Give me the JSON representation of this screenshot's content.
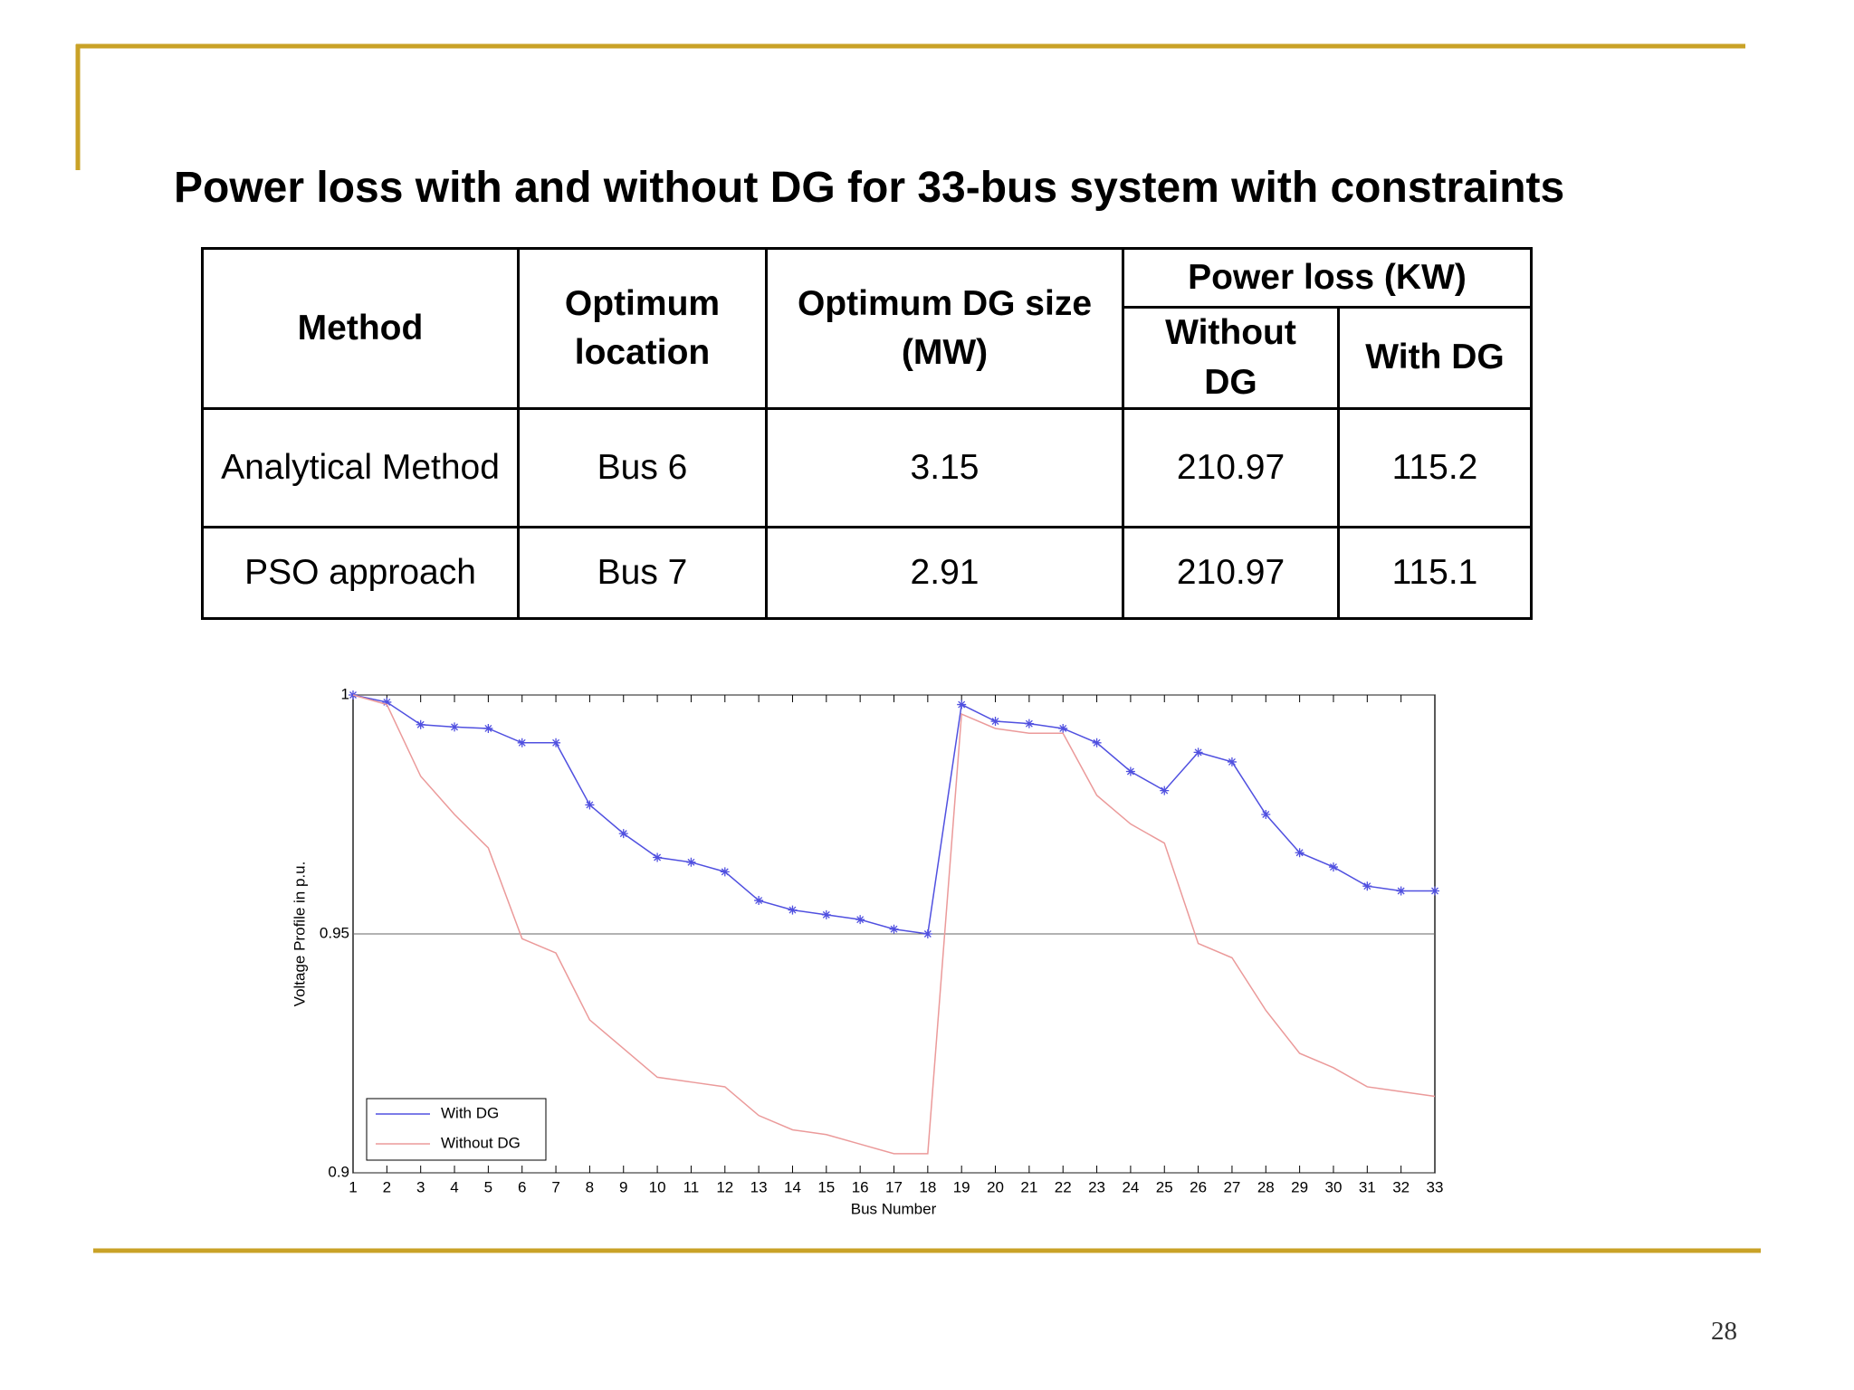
{
  "title": "Power loss with and without DG for 33-bus system with constraints",
  "table": {
    "columns": [
      "Method",
      "Optimum location",
      "Optimum DG size (MW)"
    ],
    "group": "Power loss (KW)",
    "subcolumns": [
      "Without DG",
      "With DG"
    ],
    "rows": [
      [
        "Analytical Method",
        "Bus 6",
        "3.15",
        "210.97",
        "115.2"
      ],
      [
        "PSO approach",
        "Bus 7",
        "2.91",
        "210.97",
        "115.1"
      ]
    ]
  },
  "chart_data": {
    "type": "line",
    "x_label": "Bus Number",
    "y_label": "Voltage Profile in p.u.",
    "x": [
      1,
      2,
      3,
      4,
      5,
      6,
      7,
      8,
      9,
      10,
      11,
      12,
      13,
      14,
      15,
      16,
      17,
      18,
      19,
      20,
      21,
      22,
      23,
      24,
      25,
      26,
      27,
      28,
      29,
      30,
      31,
      32,
      33
    ],
    "series": [
      {
        "name": "With DG",
        "color": "#5050e0",
        "marker": "star",
        "values": [
          1.0,
          0.9985,
          0.9938,
          0.9933,
          0.993,
          0.99,
          0.99,
          0.977,
          0.971,
          0.966,
          0.965,
          0.963,
          0.957,
          0.955,
          0.954,
          0.953,
          0.951,
          0.95,
          0.998,
          0.9945,
          0.994,
          0.993,
          0.99,
          0.984,
          0.98,
          0.988,
          0.986,
          0.975,
          0.967,
          0.964,
          0.96,
          0.959,
          0.959
        ]
      },
      {
        "name": "Without DG",
        "color": "#eb9a9a",
        "values": [
          1.0,
          0.998,
          0.983,
          0.975,
          0.968,
          0.949,
          0.946,
          0.932,
          0.926,
          0.92,
          0.919,
          0.918,
          0.912,
          0.909,
          0.908,
          0.906,
          0.904,
          0.904,
          0.996,
          0.993,
          0.992,
          0.992,
          0.979,
          0.973,
          0.969,
          0.948,
          0.945,
          0.934,
          0.925,
          0.922,
          0.918,
          0.917,
          0.916
        ]
      }
    ],
    "xlim": [
      1,
      33
    ],
    "xticks": [
      1,
      2,
      3,
      4,
      5,
      6,
      7,
      8,
      9,
      10,
      11,
      12,
      13,
      14,
      15,
      16,
      17,
      18,
      19,
      20,
      21,
      22,
      23,
      24,
      25,
      26,
      27,
      28,
      29,
      30,
      31,
      32,
      33
    ],
    "ylim": [
      0.9,
      1
    ],
    "yticks": [
      0.9,
      0.95,
      1
    ],
    "grid": true,
    "legend": "lower left"
  },
  "page_number": "28"
}
